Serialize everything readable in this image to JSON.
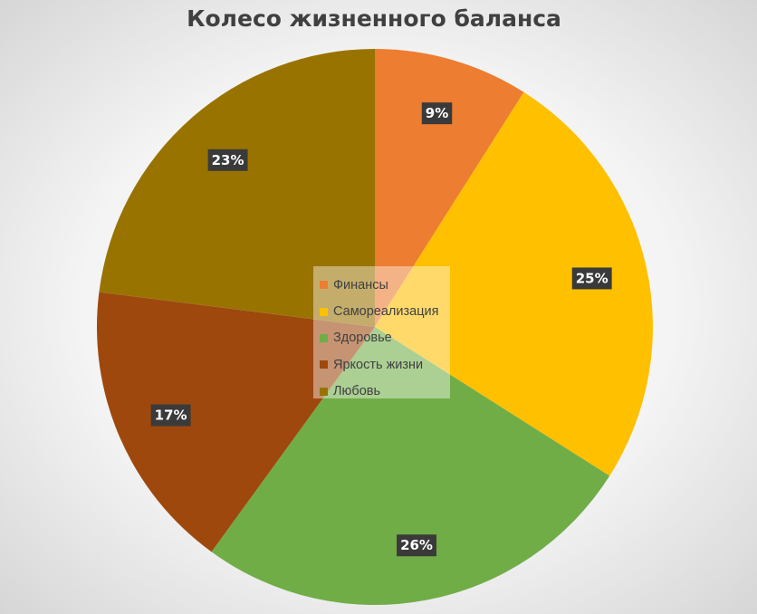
{
  "chart_data": {
    "type": "pie",
    "title": "Колесо жизненного баланса",
    "categories": [
      "Финансы",
      "Самореализация",
      "Здоровье",
      "Яркость жизни",
      "Любовь"
    ],
    "values": [
      9,
      25,
      26,
      17,
      23
    ],
    "labels": [
      "9%",
      "25%",
      "26%",
      "17%",
      "23%"
    ],
    "colors": [
      "#ed7d31",
      "#ffc000",
      "#70ad47",
      "#9e480e",
      "#997300"
    ],
    "legend_position": "center",
    "start_angle_deg": 0,
    "direction": "clockwise"
  }
}
